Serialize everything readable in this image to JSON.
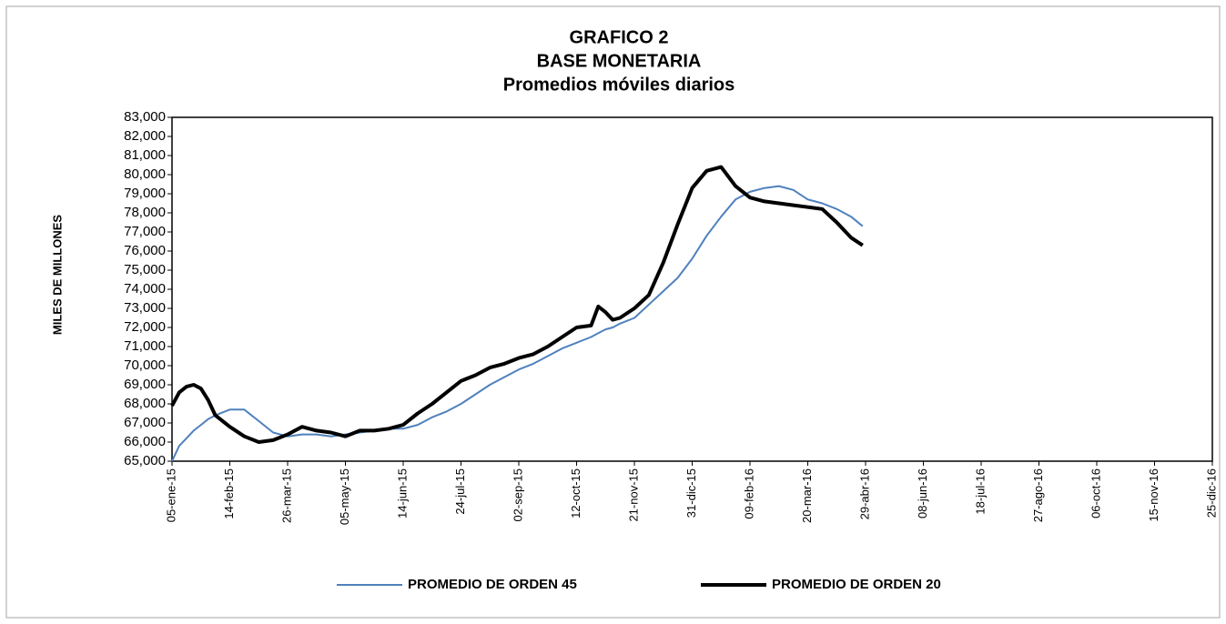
{
  "chart_data": {
    "type": "line",
    "title": [
      "GRAFICO 2",
      "BASE MONETARIA",
      "Promedios móviles diarios"
    ],
    "y_label": "MILES DE MILLONES",
    "x": [
      "2015-01-05",
      "2015-01-10",
      "2015-01-15",
      "2015-01-20",
      "2015-01-25",
      "2015-01-30",
      "2015-02-04",
      "2015-02-14",
      "2015-02-24",
      "2015-03-06",
      "2015-03-16",
      "2015-03-26",
      "2015-04-05",
      "2015-04-15",
      "2015-04-25",
      "2015-05-05",
      "2015-05-15",
      "2015-05-25",
      "2015-06-04",
      "2015-06-14",
      "2015-06-24",
      "2015-07-04",
      "2015-07-14",
      "2015-07-24",
      "2015-08-03",
      "2015-08-13",
      "2015-08-23",
      "2015-09-02",
      "2015-09-12",
      "2015-09-22",
      "2015-10-02",
      "2015-10-12",
      "2015-10-22",
      "2015-10-27",
      "2015-11-01",
      "2015-11-06",
      "2015-11-11",
      "2015-11-21",
      "2015-12-01",
      "2015-12-11",
      "2015-12-21",
      "2015-12-31",
      "2016-01-10",
      "2016-01-20",
      "2016-01-30",
      "2016-02-09",
      "2016-02-19",
      "2016-02-29",
      "2016-03-10",
      "2016-03-20",
      "2016-03-30",
      "2016-04-09",
      "2016-04-19",
      "2016-04-27"
    ],
    "series": [
      {
        "name": "PROMEDIO DE ORDEN 45",
        "color": "#4f81bd",
        "width": 2,
        "values": [
          65000,
          65800,
          66200,
          66600,
          66900,
          67200,
          67400,
          67700,
          67700,
          67100,
          66500,
          66300,
          66400,
          66400,
          66300,
          66400,
          66500,
          66600,
          66700,
          66700,
          66900,
          67300,
          67600,
          68000,
          68500,
          69000,
          69400,
          69800,
          70100,
          70500,
          70900,
          71200,
          71500,
          71700,
          71900,
          72000,
          72200,
          72500,
          73200,
          73900,
          74600,
          75600,
          76800,
          77800,
          78700,
          79100,
          79300,
          79400,
          79200,
          78700,
          78500,
          78200,
          77800,
          77300
        ]
      },
      {
        "name": "PROMEDIO DE ORDEN 20",
        "color": "#000000",
        "width": 4,
        "values": [
          67900,
          68600,
          68900,
          69000,
          68800,
          68200,
          67400,
          66800,
          66300,
          66000,
          66100,
          66400,
          66800,
          66600,
          66500,
          66300,
          66600,
          66600,
          66700,
          66900,
          67500,
          68000,
          68600,
          69200,
          69500,
          69900,
          70100,
          70400,
          70600,
          71000,
          71500,
          72000,
          72100,
          73100,
          72800,
          72400,
          72500,
          73000,
          73700,
          75400,
          77400,
          79300,
          80200,
          80400,
          79400,
          78800,
          78600,
          78500,
          78400,
          78300,
          78200,
          77500,
          76700,
          76300
        ]
      }
    ],
    "xlim": [
      "2015-01-05",
      "2016-12-25"
    ],
    "xticks": [
      {
        "value": "2015-01-05",
        "label": "05-ene-15"
      },
      {
        "value": "2015-02-14",
        "label": "14-feb-15"
      },
      {
        "value": "2015-03-26",
        "label": "26-mar-15"
      },
      {
        "value": "2015-05-05",
        "label": "05-may-15"
      },
      {
        "value": "2015-06-14",
        "label": "14-jun-15"
      },
      {
        "value": "2015-07-24",
        "label": "24-jul-15"
      },
      {
        "value": "2015-09-02",
        "label": "02-sep-15"
      },
      {
        "value": "2015-10-12",
        "label": "12-oct-15"
      },
      {
        "value": "2015-11-21",
        "label": "21-nov-15"
      },
      {
        "value": "2015-12-31",
        "label": "31-dic-15"
      },
      {
        "value": "2016-02-09",
        "label": "09-feb-16"
      },
      {
        "value": "2016-03-20",
        "label": "20-mar-16"
      },
      {
        "value": "2016-04-29",
        "label": "29-abr-16"
      },
      {
        "value": "2016-06-08",
        "label": "08-jun-16"
      },
      {
        "value": "2016-07-18",
        "label": "18-jul-16"
      },
      {
        "value": "2016-08-27",
        "label": "27-ago-16"
      },
      {
        "value": "2016-10-06",
        "label": "06-oct-16"
      },
      {
        "value": "2016-11-15",
        "label": "15-nov-16"
      },
      {
        "value": "2016-12-25",
        "label": "25-dic-16"
      }
    ],
    "ylim": [
      65000,
      83000
    ],
    "yticks": [
      {
        "value": 65000,
        "label": "65,000"
      },
      {
        "value": 66000,
        "label": "66,000"
      },
      {
        "value": 67000,
        "label": "67,000"
      },
      {
        "value": 68000,
        "label": "68,000"
      },
      {
        "value": 69000,
        "label": "69,000"
      },
      {
        "value": 70000,
        "label": "70,000"
      },
      {
        "value": 71000,
        "label": "71,000"
      },
      {
        "value": 72000,
        "label": "72,000"
      },
      {
        "value": 73000,
        "label": "73,000"
      },
      {
        "value": 74000,
        "label": "74,000"
      },
      {
        "value": 75000,
        "label": "75,000"
      },
      {
        "value": 76000,
        "label": "76,000"
      },
      {
        "value": 77000,
        "label": "77,000"
      },
      {
        "value": 78000,
        "label": "78,000"
      },
      {
        "value": 79000,
        "label": "79,000"
      },
      {
        "value": 80000,
        "label": "80,000"
      },
      {
        "value": 81000,
        "label": "81,000"
      },
      {
        "value": 82000,
        "label": "82,000"
      },
      {
        "value": 83000,
        "label": "83,000"
      }
    ],
    "grid": false,
    "legend": "bottom"
  }
}
